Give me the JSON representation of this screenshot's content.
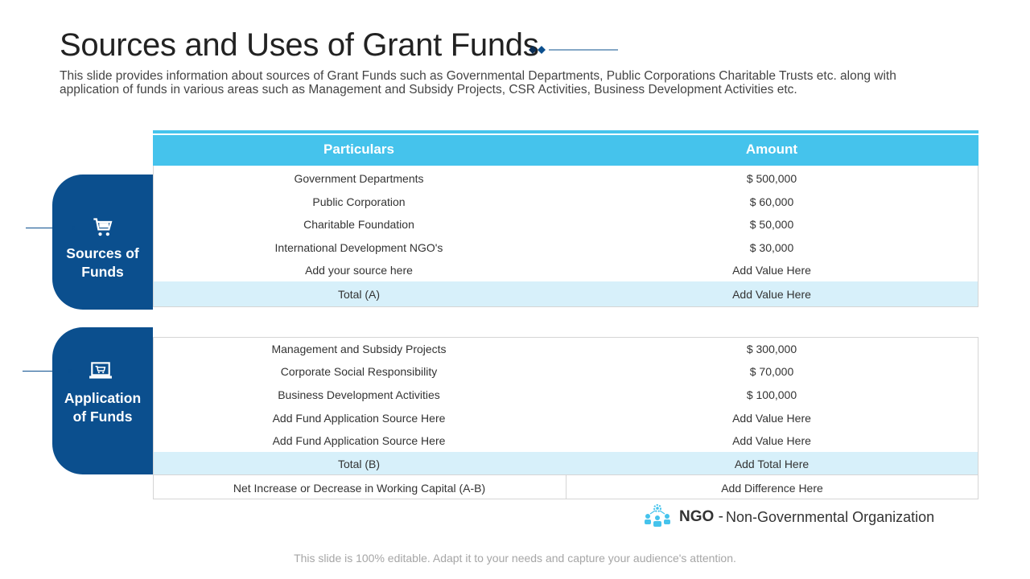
{
  "slide": {
    "title": "Sources and Uses of Grant Funds",
    "subtitle": "This slide provides information about sources of Grant Funds such as Governmental Departments, Public Corporations Charitable Trusts etc. along with application of funds in various areas such as Management and Subsidy Projects, CSR Activities, Business Development Activities etc.",
    "footer": "This slide is 100% editable. Adapt it to your needs and capture your audience's attention."
  },
  "table": {
    "headers": [
      "Particulars",
      "Amount"
    ],
    "sources": {
      "label": "Sources of\nFunds",
      "icon": "cart-icon",
      "rows": [
        {
          "particular": "Government Departments",
          "amount": "$ 500,000"
        },
        {
          "particular": "Public Corporation",
          "amount": "$ 60,000"
        },
        {
          "particular": "Charitable Foundation",
          "amount": "$ 50,000"
        },
        {
          "particular": "International Development NGO's",
          "amount": "$ 30,000"
        },
        {
          "particular": "Add your source here",
          "amount": "Add Value Here"
        }
      ],
      "total": {
        "particular": "Total (A)",
        "amount": "Add Value Here"
      }
    },
    "applications": {
      "label": "Application\nof Funds",
      "icon": "laptop-cart-icon",
      "rows": [
        {
          "particular": "Management and Subsidy Projects",
          "amount": "$ 300,000"
        },
        {
          "particular": "Corporate Social Responsibility",
          "amount": "$ 70,000"
        },
        {
          "particular": "Business Development Activities",
          "amount": "$ 100,000"
        },
        {
          "particular": "Add Fund Application Source Here",
          "amount": "Add Value Here"
        },
        {
          "particular": "Add Fund Application Source Here",
          "amount": "Add Value Here"
        }
      ],
      "total": {
        "particular": "Total (B)",
        "amount": "Add Total Here"
      }
    },
    "net": {
      "particular": "Net Increase or Decrease in Working Capital (A-B)",
      "amount": "Add Difference Here"
    }
  },
  "note": {
    "icon": "people-network-icon",
    "abbr": "NGO",
    "dash": "-",
    "full": "Non-Governmental Organization"
  },
  "colors": {
    "accent": "#45c3ec",
    "navy": "#0b4f8e",
    "total_row": "#d7f0fa"
  }
}
